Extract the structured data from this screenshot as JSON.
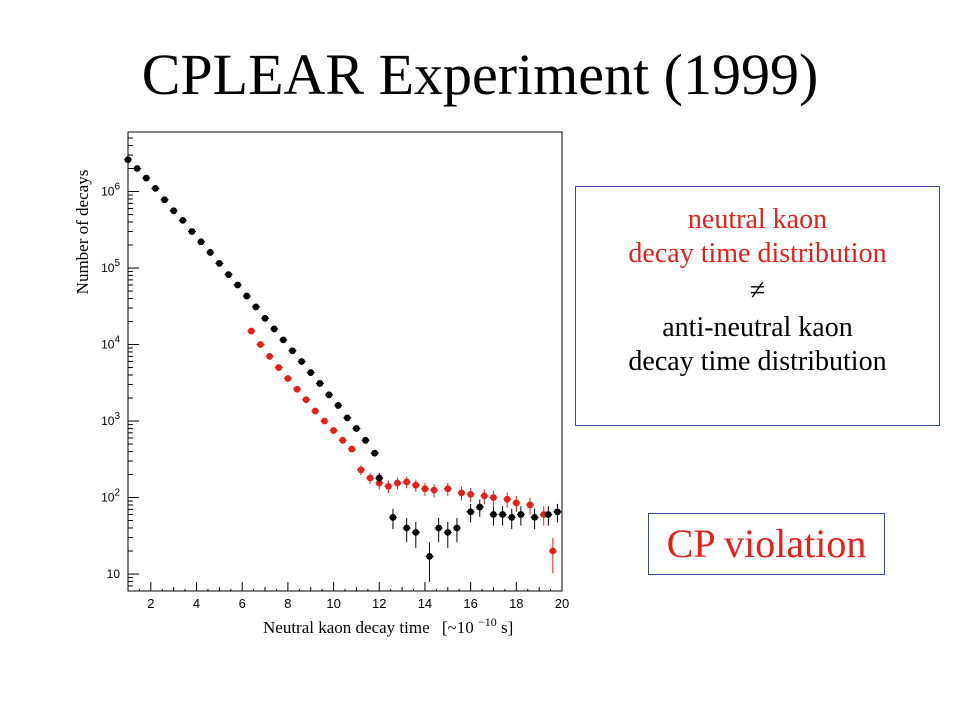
{
  "slide": {
    "title": "CPLEAR Experiment (1999)"
  },
  "annotation": {
    "line1": "neutral kaon",
    "line2": "decay time distribution",
    "neq": "≠",
    "line3": "anti-neutral kaon",
    "line4": "decay time distribution"
  },
  "cp_box": {
    "label": "CP violation"
  },
  "colors": {
    "kaon": "#e3201b",
    "antikaon": "#000000",
    "box_border": "#3a49a8"
  },
  "chart_data": {
    "type": "scatter",
    "xlabel": "Neutral kaon decay time",
    "xlabel_unit": "[~10",
    "xlabel_exp": "−10",
    "xlabel_unit_end": " s]",
    "ylabel": "Number of decays",
    "xlim": [
      1,
      20
    ],
    "ylim": [
      6,
      6000000
    ],
    "yscale": "log",
    "x_ticks": [
      "2",
      "4",
      "6",
      "8",
      "10",
      "12",
      "14",
      "16",
      "18",
      "20"
    ],
    "y_ticks": [
      {
        "value": 10,
        "base": "10",
        "exp": ""
      },
      {
        "value": 100,
        "base": "10",
        "exp": "2"
      },
      {
        "value": 1000,
        "base": "10",
        "exp": "3"
      },
      {
        "value": 10000,
        "base": "10",
        "exp": "4"
      },
      {
        "value": 100000,
        "base": "10",
        "exp": "5"
      },
      {
        "value": 1000000,
        "base": "10",
        "exp": "6"
      }
    ],
    "series": [
      {
        "color": "#e3201b",
        "points": [
          [
            6.4,
            15000
          ],
          [
            6.8,
            10000
          ],
          [
            7.2,
            7000
          ],
          [
            7.6,
            5000
          ],
          [
            8.0,
            3600
          ],
          [
            8.4,
            2600
          ],
          [
            8.8,
            1900
          ],
          [
            9.2,
            1350
          ],
          [
            9.6,
            1000
          ],
          [
            10.0,
            750
          ],
          [
            10.4,
            560
          ],
          [
            10.8,
            430
          ],
          [
            11.2,
            230
          ],
          [
            11.6,
            180
          ],
          [
            12.0,
            155
          ],
          [
            12.4,
            140
          ],
          [
            12.8,
            155
          ],
          [
            13.2,
            160
          ],
          [
            13.6,
            145
          ],
          [
            14.0,
            130
          ],
          [
            14.4,
            125
          ],
          [
            15.0,
            130
          ],
          [
            15.6,
            115
          ],
          [
            16.0,
            110
          ],
          [
            16.6,
            105
          ],
          [
            17.0,
            100
          ],
          [
            17.6,
            95
          ],
          [
            18.0,
            85
          ],
          [
            18.6,
            80
          ],
          [
            19.2,
            60
          ],
          [
            19.6,
            20
          ]
        ]
      },
      {
        "color": "#000000",
        "points": [
          [
            1.0,
            2600000
          ],
          [
            1.4,
            2000000
          ],
          [
            1.8,
            1500000
          ],
          [
            2.2,
            1100000
          ],
          [
            2.6,
            780000
          ],
          [
            3.0,
            560000
          ],
          [
            3.4,
            420000
          ],
          [
            3.8,
            300000
          ],
          [
            4.2,
            220000
          ],
          [
            4.6,
            160000
          ],
          [
            5.0,
            115000
          ],
          [
            5.4,
            82000
          ],
          [
            5.8,
            60000
          ],
          [
            6.2,
            43000
          ],
          [
            6.6,
            31000
          ],
          [
            7.0,
            22000
          ],
          [
            7.4,
            16000
          ],
          [
            7.8,
            11500
          ],
          [
            8.2,
            8300
          ],
          [
            8.6,
            6000
          ],
          [
            9.0,
            4300
          ],
          [
            9.4,
            3100
          ],
          [
            9.8,
            2200
          ],
          [
            10.2,
            1600
          ],
          [
            10.6,
            1100
          ],
          [
            11.0,
            800
          ],
          [
            11.4,
            560
          ],
          [
            11.8,
            380
          ],
          [
            12.0,
            180
          ],
          [
            12.6,
            55
          ],
          [
            13.2,
            40
          ],
          [
            13.6,
            35
          ],
          [
            14.2,
            17
          ],
          [
            14.6,
            40
          ],
          [
            15.0,
            35
          ],
          [
            15.4,
            40
          ],
          [
            16.0,
            65
          ],
          [
            16.4,
            75
          ],
          [
            17.0,
            60
          ],
          [
            17.4,
            60
          ],
          [
            17.8,
            55
          ],
          [
            18.2,
            60
          ],
          [
            18.8,
            55
          ],
          [
            19.4,
            60
          ],
          [
            19.8,
            65
          ]
        ]
      }
    ]
  }
}
